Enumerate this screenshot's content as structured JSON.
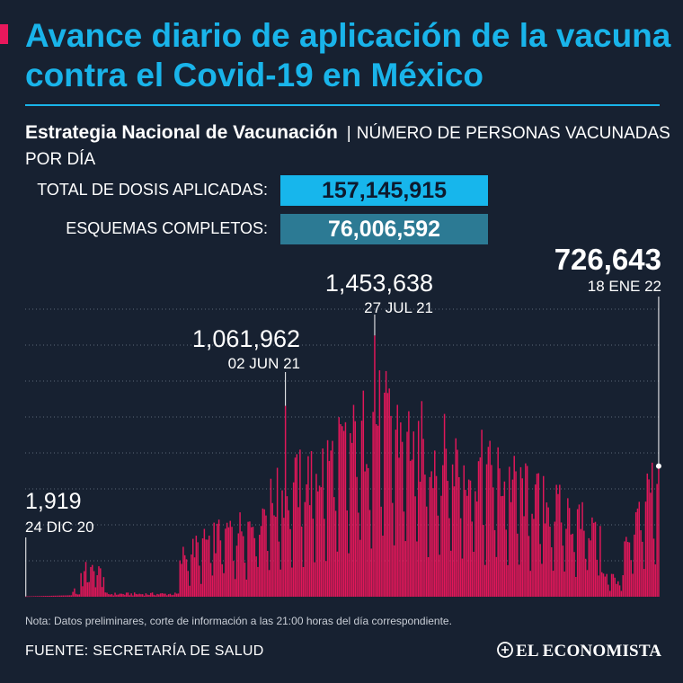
{
  "header": {
    "title": "Avance diario de aplicación de la vacuna contra el Covid-19 en México",
    "subtitle_strong": "Estrategia Nacional de Vacunación",
    "subtitle_sep": "|",
    "subtitle_rest": "NÚMERO DE PERSONAS VACUNADAS POR DÍA"
  },
  "stats": {
    "total_label": "TOTAL DE DOSIS APLICADAS:",
    "total_value": "157,145,915",
    "complete_label": "ESQUEMAS COMPLETOS:",
    "complete_value": "76,006,592"
  },
  "colors": {
    "background": "#172131",
    "title": "#19b4ea",
    "bar": "#e01759",
    "total_box": "#17b6ec",
    "complete_box": "#2c7a94",
    "gridline": "#5b6677"
  },
  "chart_data": {
    "type": "bar",
    "x_start": "24 DIC 20",
    "x_end": "18 ENE 22",
    "ylim": [
      0,
      1600000
    ],
    "grid": "dotted horizontal",
    "values": [],
    "annotations": [
      {
        "value_label": "1,919",
        "date_label": "24 DIC 20",
        "value": 1919,
        "day_index": 0
      },
      {
        "value_label": "1,061,962",
        "date_label": "02 JUN 21",
        "value": 1061962,
        "day_index": 160
      },
      {
        "value_label": "1,453,638",
        "date_label": "27 JUL 21",
        "value": 1453638,
        "day_index": 215
      },
      {
        "value_label": "726,643",
        "date_label": "18 ENE 22",
        "value": 726643,
        "day_index": 390
      }
    ]
  },
  "footer": {
    "note": "Nota: Datos preliminares, corte de información a las 21:00 horas del día correspondiente.",
    "source": "FUENTE: SECRETARÍA DE SALUD",
    "brand": "EL ECONOMISTA"
  }
}
